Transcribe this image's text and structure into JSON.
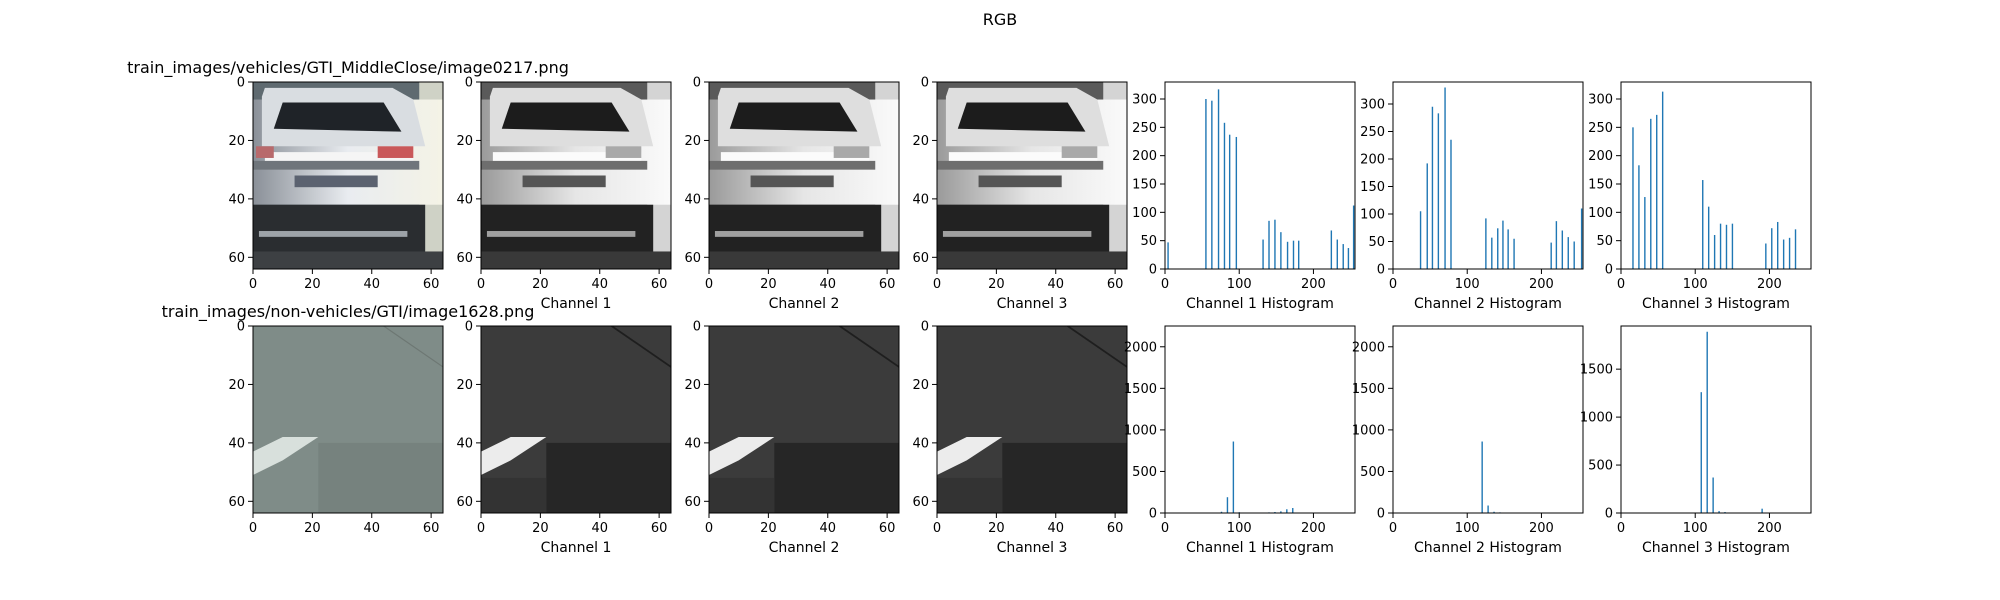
{
  "figure": {
    "title": "RGB"
  },
  "chart_data": [
    {
      "type": "image",
      "title": "train_images/vehicles/GTI_MiddleClose/image0217.png",
      "xlabel": "",
      "xlim": [
        0,
        64
      ],
      "ylim": [
        64,
        0
      ],
      "xticks": [
        0,
        20,
        40,
        60
      ],
      "yticks": [
        0,
        20,
        40,
        60
      ],
      "colormap": "rgb",
      "subject": "rear view of a white car"
    },
    {
      "type": "image",
      "title": "",
      "xlabel": "Channel 1",
      "xlim": [
        0,
        64
      ],
      "ylim": [
        64,
        0
      ],
      "xticks": [
        0,
        20,
        40,
        60
      ],
      "yticks": [
        0,
        20,
        40,
        60
      ],
      "colormap": "gray",
      "subject": "rear view of a white car"
    },
    {
      "type": "image",
      "title": "",
      "xlabel": "Channel 2",
      "xlim": [
        0,
        64
      ],
      "ylim": [
        64,
        0
      ],
      "xticks": [
        0,
        20,
        40,
        60
      ],
      "yticks": [
        0,
        20,
        40,
        60
      ],
      "colormap": "gray",
      "subject": "rear view of a white car"
    },
    {
      "type": "image",
      "title": "",
      "xlabel": "Channel 3",
      "xlim": [
        0,
        64
      ],
      "ylim": [
        64,
        0
      ],
      "xticks": [
        0,
        20,
        40,
        60
      ],
      "yticks": [
        0,
        20,
        40,
        60
      ],
      "colormap": "gray",
      "subject": "rear view of a white car"
    },
    {
      "type": "bar",
      "xlabel": "Channel 1 Histogram",
      "xlim": [
        0,
        256
      ],
      "ylim": [
        0,
        330
      ],
      "xticks": [
        0,
        100,
        200
      ],
      "yticks": [
        0,
        50,
        100,
        150,
        200,
        250,
        300
      ],
      "color": "#1f77b4",
      "x": [
        4,
        55,
        63,
        72,
        80,
        87,
        96,
        132,
        140,
        148,
        156,
        165,
        173,
        180,
        224,
        232,
        240,
        247,
        254
      ],
      "values": [
        47,
        300,
        297,
        317,
        258,
        237,
        233,
        52,
        85,
        87,
        65,
        48,
        50,
        50,
        68,
        52,
        44,
        37,
        112
      ]
    },
    {
      "type": "bar",
      "xlabel": "Channel 2 Histogram",
      "xlim": [
        0,
        256
      ],
      "ylim": [
        0,
        340
      ],
      "xticks": [
        0,
        100,
        200
      ],
      "yticks": [
        0,
        50,
        100,
        150,
        200,
        250,
        300
      ],
      "color": "#1f77b4",
      "x": [
        37,
        46,
        53,
        61,
        70,
        78,
        125,
        133,
        141,
        148,
        155,
        163,
        213,
        220,
        228,
        236,
        244,
        254
      ],
      "values": [
        105,
        192,
        295,
        283,
        330,
        235,
        92,
        57,
        74,
        88,
        72,
        55,
        48,
        87,
        70,
        58,
        50,
        110
      ]
    },
    {
      "type": "bar",
      "xlabel": "Channel 3 Histogram",
      "xlim": [
        0,
        256
      ],
      "ylim": [
        0,
        330
      ],
      "xticks": [
        0,
        100,
        200
      ],
      "yticks": [
        0,
        50,
        100,
        150,
        200,
        250,
        300
      ],
      "color": "#1f77b4",
      "x": [
        16,
        24,
        32,
        40,
        48,
        56,
        110,
        118,
        126,
        134,
        142,
        150,
        195,
        203,
        211,
        219,
        227,
        235
      ],
      "values": [
        250,
        183,
        127,
        265,
        272,
        313,
        157,
        110,
        60,
        80,
        78,
        80,
        45,
        72,
        83,
        52,
        55,
        70
      ]
    },
    {
      "type": "image",
      "title": "train_images/non-vehicles/GTI/image1628.png",
      "xlabel": "",
      "xlim": [
        0,
        64
      ],
      "ylim": [
        64,
        0
      ],
      "xticks": [
        0,
        20,
        40,
        60
      ],
      "yticks": [
        0,
        20,
        40,
        60
      ],
      "colormap": "rgb",
      "subject": "gray road surface with white lane marking"
    },
    {
      "type": "image",
      "title": "",
      "xlabel": "Channel 1",
      "xlim": [
        0,
        64
      ],
      "ylim": [
        64,
        0
      ],
      "xticks": [
        0,
        20,
        40,
        60
      ],
      "yticks": [
        0,
        20,
        40,
        60
      ],
      "colormap": "gray",
      "subject": "gray road surface with white lane marking"
    },
    {
      "type": "image",
      "title": "",
      "xlabel": "Channel 2",
      "xlim": [
        0,
        64
      ],
      "ylim": [
        64,
        0
      ],
      "xticks": [
        0,
        20,
        40,
        60
      ],
      "yticks": [
        0,
        20,
        40,
        60
      ],
      "colormap": "gray",
      "subject": "gray road surface with white lane marking"
    },
    {
      "type": "image",
      "title": "",
      "xlabel": "Channel 3",
      "xlim": [
        0,
        64
      ],
      "ylim": [
        64,
        0
      ],
      "xticks": [
        0,
        20,
        40,
        60
      ],
      "yticks": [
        0,
        20,
        40,
        60
      ],
      "colormap": "gray",
      "subject": "gray road surface with white lane marking"
    },
    {
      "type": "bar",
      "xlabel": "Channel 1 Histogram",
      "xlim": [
        0,
        256
      ],
      "ylim": [
        0,
        2250
      ],
      "xticks": [
        0,
        100,
        200
      ],
      "yticks": [
        0,
        500,
        1000,
        1500,
        2000
      ],
      "color": "#1f77b4",
      "x": [
        76,
        84,
        92,
        100,
        140,
        148,
        156,
        164,
        172
      ],
      "values": [
        15,
        190,
        860,
        10,
        8,
        12,
        20,
        45,
        60
      ]
    },
    {
      "type": "bar",
      "xlabel": "Channel 2 Histogram",
      "xlim": [
        0,
        256
      ],
      "ylim": [
        0,
        2250
      ],
      "xticks": [
        0,
        100,
        200
      ],
      "yticks": [
        0,
        500,
        1000,
        1500,
        2000
      ],
      "color": "#1f77b4",
      "x": [
        120,
        128,
        136,
        144,
        152
      ],
      "values": [
        860,
        90,
        15,
        8,
        5
      ]
    },
    {
      "type": "bar",
      "xlabel": "Channel 3 Histogram",
      "xlim": [
        0,
        256
      ],
      "ylim": [
        0,
        1950
      ],
      "xticks": [
        0,
        100,
        200
      ],
      "yticks": [
        0,
        500,
        1000,
        1500
      ],
      "color": "#1f77b4",
      "x": [
        108,
        116,
        124,
        132,
        140,
        190
      ],
      "values": [
        1260,
        1890,
        370,
        20,
        10,
        45
      ]
    }
  ]
}
